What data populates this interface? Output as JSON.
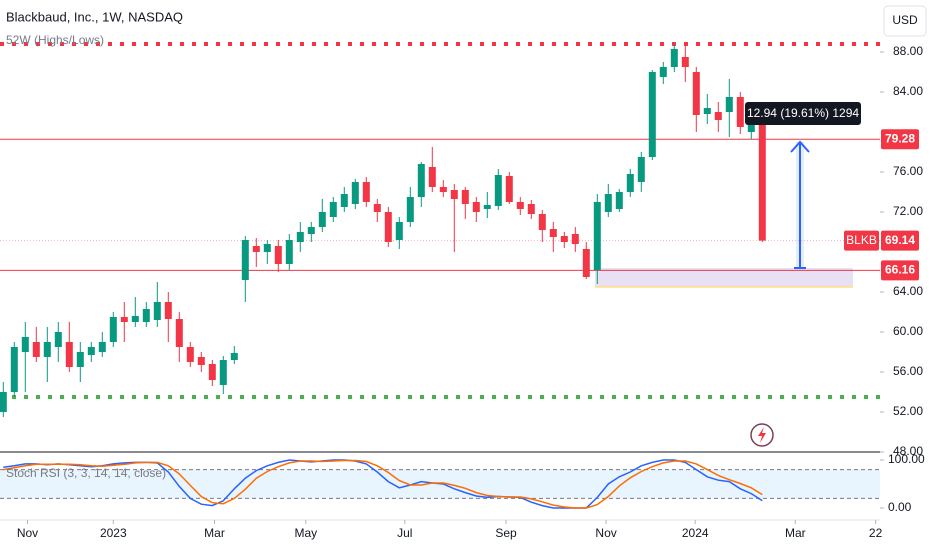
{
  "chart_data": {
    "type": "candlestick",
    "title": "Blackbaud, Inc., 1W, NASDAQ",
    "currency": "USD",
    "symbol": "BLKB",
    "up_color": "#089981",
    "down_color": "#f23645",
    "xlim": [
      -0.3,
      79.7
    ],
    "xticks": [
      {
        "value": 2.2,
        "label": "Nov"
      },
      {
        "value": 10,
        "label": "2023"
      },
      {
        "value": 19.2,
        "label": "Mar"
      },
      {
        "value": 27.5,
        "label": "May"
      },
      {
        "value": 36.5,
        "label": "Jul"
      },
      {
        "value": 45.7,
        "label": "Sep"
      },
      {
        "value": 54.8,
        "label": "Nov"
      },
      {
        "value": 62.9,
        "label": "2024"
      },
      {
        "value": 72,
        "label": "Mar"
      },
      {
        "value": 79.3,
        "label": "22"
      }
    ],
    "ylim": [
      48,
      93.2
    ],
    "yticks": [
      {
        "value": 48,
        "label": "48.00"
      },
      {
        "value": 52,
        "label": "52.00"
      },
      {
        "value": 56,
        "label": "56.00"
      },
      {
        "value": 60,
        "label": "60.00"
      },
      {
        "value": 64,
        "label": "64.00"
      },
      {
        "value": 72,
        "label": "72.00"
      },
      {
        "value": 76,
        "label": "76.00"
      },
      {
        "value": 84,
        "label": "84.00"
      },
      {
        "value": 88,
        "label": "88.00"
      }
    ],
    "open": [
      52,
      54,
      58,
      59,
      57.5,
      58.5,
      59,
      56.5,
      57.7,
      58,
      59,
      61.5,
      61,
      61,
      61.2,
      63,
      61.3,
      58.5,
      57.5,
      56.8,
      54.7,
      57.2,
      65.2,
      68.6,
      68,
      68.6,
      66.8,
      69,
      69.8,
      70.5,
      71.5,
      72.5,
      72.8,
      75,
      72.8,
      72,
      69.2,
      71,
      73.5,
      76.5,
      74.5,
      74.2,
      74.2,
      73,
      72.3,
      72.6,
      75.6,
      73,
      72.8,
      71.8,
      70.3,
      69.6,
      69.8,
      68.3,
      66.2,
      72,
      72.3,
      74,
      75,
      77.5,
      85.5,
      86.5,
      87.5,
      86,
      81.8,
      82,
      82,
      83.5,
      80,
      81.4
    ],
    "high": [
      55,
      59,
      61,
      60.5,
      60.5,
      61,
      61,
      59,
      59,
      60,
      62,
      63,
      63.5,
      63,
      65,
      64,
      62,
      59,
      58,
      57.2,
      57.6,
      58.6,
      69.6,
      69.4,
      69.2,
      69.2,
      69.8,
      71,
      71,
      73.3,
      73.5,
      74.5,
      75.3,
      75.5,
      73.3,
      72.5,
      71.5,
      74.5,
      77,
      78.5,
      75.2,
      74.8,
      74.5,
      73.5,
      74,
      76.3,
      76,
      73.5,
      73.2,
      72.2,
      71,
      70,
      70.5,
      69,
      73.8,
      74.8,
      74.3,
      76.3,
      78,
      86.2,
      87,
      88.8,
      88.6,
      86.5,
      83.8,
      83,
      85.3,
      84,
      82.5,
      81.5
    ],
    "low": [
      51.5,
      53.5,
      54,
      57,
      55,
      57,
      56,
      55,
      57,
      57.5,
      58.5,
      59,
      60.5,
      60.5,
      60.5,
      59,
      57,
      56.5,
      56,
      54.6,
      53.8,
      56.8,
      63,
      66.5,
      66.8,
      66,
      66.2,
      68,
      69,
      70,
      71,
      72,
      72.3,
      72.5,
      71,
      68.5,
      68.3,
      70.5,
      72.5,
      74,
      73.5,
      68,
      71.3,
      71,
      71.4,
      72.2,
      72.8,
      71.7,
      71.3,
      69,
      68,
      68.4,
      68,
      65.3,
      64.8,
      71.5,
      72,
      73.5,
      74,
      77.2,
      84.8,
      86,
      85,
      80,
      80.8,
      80,
      79.5,
      79.8,
      79.3,
      69
    ],
    "close": [
      54,
      58.5,
      59.5,
      57.5,
      59,
      60,
      56.5,
      58,
      58.5,
      59,
      61.5,
      61,
      61.6,
      62.3,
      63,
      61.3,
      58.5,
      57,
      56.7,
      55.2,
      57.2,
      57.9,
      69.2,
      68,
      68.8,
      66.8,
      69.2,
      70,
      70.5,
      72,
      73,
      73.8,
      75,
      73,
      72,
      69,
      71,
      73.5,
      76.8,
      74.5,
      74,
      73.3,
      72.8,
      72,
      72.7,
      75.7,
      73,
      72.3,
      71.8,
      70.2,
      69.5,
      69,
      68.8,
      65.5,
      73,
      73.8,
      74,
      75.8,
      77.5,
      86,
      86.5,
      88.3,
      86.5,
      81.7,
      82.4,
      81.2,
      83.5,
      80.5,
      82,
      69.14
    ],
    "levels": [
      79.28,
      66.16
    ],
    "level_color": "#f23645",
    "high_low": {
      "label": "52W (Highs/Lows)",
      "high": 88.8,
      "low": 53.5,
      "high_color": "#f23645",
      "low_color": "#4caf50"
    },
    "measure_label": "12.94 (19.61%) 1294",
    "indicator": {
      "label": "Stoch RSI (3, 3, 14, 14, close)",
      "y2lim": [
        -25,
        116.7
      ],
      "y2ticks": [
        {
          "value": 100,
          "label": "100.00"
        },
        {
          "value": 0,
          "label": "0.00"
        }
      ],
      "band_levels": [
        20,
        80
      ],
      "series": [
        {
          "name": "K",
          "color": "#2962ff",
          "values": [
            85,
            88,
            92,
            92,
            90,
            92,
            90,
            88,
            86,
            88,
            92,
            94,
            95,
            95,
            94,
            75,
            45,
            20,
            8,
            5,
            15,
            40,
            62,
            78,
            88,
            95,
            100,
            98,
            96,
            98,
            100,
            100,
            98,
            92,
            75,
            55,
            42,
            48,
            55,
            52,
            50,
            40,
            32,
            25,
            22,
            24,
            23,
            22,
            12,
            5,
            0,
            0,
            0,
            0,
            22,
            50,
            65,
            75,
            88,
            95,
            100,
            100,
            95,
            80,
            65,
            58,
            55,
            40,
            30,
            15
          ]
        },
        {
          "name": "D",
          "color": "#ff6d00",
          "values": [
            80,
            84,
            88,
            91,
            91,
            91,
            91,
            90,
            88,
            87,
            89,
            91,
            94,
            95,
            95,
            88,
            71,
            47,
            24,
            11,
            9,
            20,
            39,
            62,
            76,
            86,
            94,
            98,
            98,
            97,
            98,
            99,
            99,
            97,
            88,
            74,
            57,
            48,
            48,
            52,
            52,
            47,
            41,
            32,
            26,
            24,
            23,
            23,
            19,
            13,
            6,
            2,
            0,
            0,
            7,
            24,
            46,
            63,
            76,
            86,
            94,
            98,
            98,
            92,
            80,
            68,
            59,
            51,
            42,
            28
          ]
        }
      ]
    }
  }
}
